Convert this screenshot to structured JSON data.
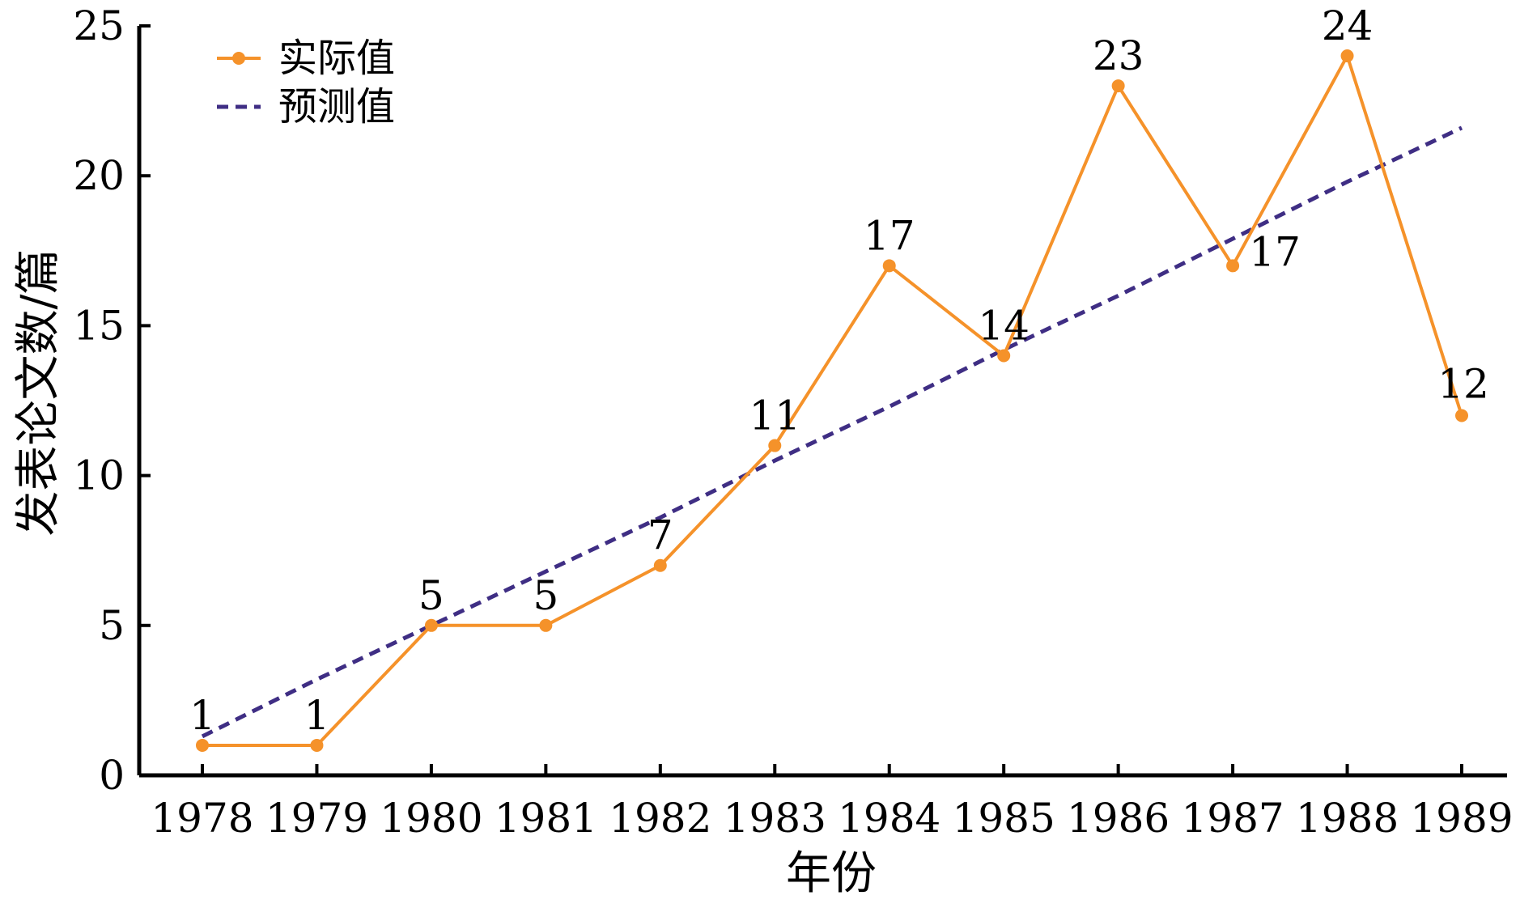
{
  "chart_data": {
    "type": "line",
    "title": "",
    "xlabel": "年份",
    "ylabel": "发表论文数/篇",
    "categories": [
      "1978",
      "1979",
      "1980",
      "1981",
      "1982",
      "1983",
      "1984",
      "1985",
      "1986",
      "1987",
      "1988",
      "1989"
    ],
    "ylim": [
      0,
      25
    ],
    "yticks": [
      0,
      5,
      10,
      15,
      20,
      25
    ],
    "grid": false,
    "legend_position": "top-left",
    "series": [
      {
        "name": "实际值",
        "style": "solid-with-markers",
        "color": "#F5922A",
        "values": [
          1,
          1,
          5,
          5,
          7,
          11,
          17,
          14,
          23,
          17,
          24,
          12
        ],
        "data_labels": [
          "1",
          "1",
          "5",
          "5",
          "7",
          "11",
          "17",
          "14",
          "23",
          "17",
          "24",
          "12"
        ]
      },
      {
        "name": "预测值",
        "style": "dashed",
        "color": "#3F2E84",
        "values": [
          1.3,
          3.2,
          5.0,
          6.8,
          8.6,
          10.5,
          12.3,
          14.2,
          16.0,
          17.9,
          19.8,
          21.6
        ]
      }
    ]
  }
}
